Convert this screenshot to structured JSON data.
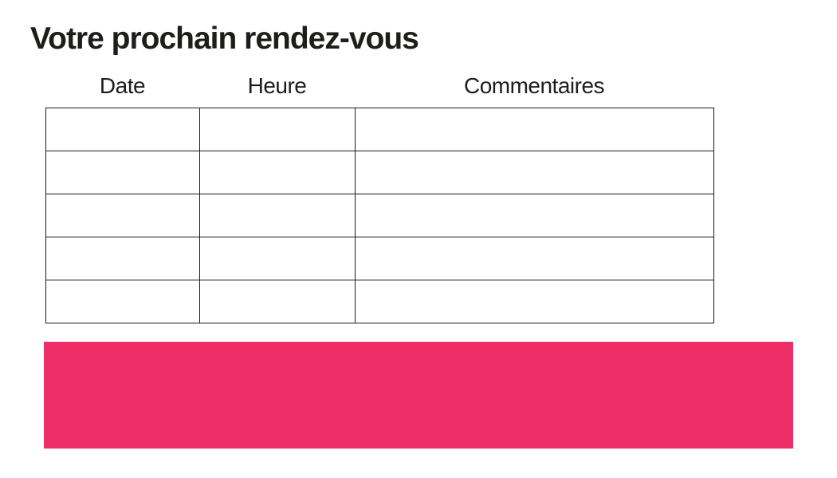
{
  "page": {
    "title": "Votre prochain rendez-vous"
  },
  "table": {
    "headers": [
      "Date",
      "Heure",
      "Commentaires"
    ],
    "rows": [
      [
        "",
        "",
        ""
      ],
      [
        "",
        "",
        ""
      ],
      [
        "",
        "",
        ""
      ],
      [
        "",
        "",
        ""
      ],
      [
        "",
        "",
        ""
      ]
    ]
  },
  "banner": {
    "text": ""
  },
  "colors": {
    "accent_pink": "#ED2E67",
    "text": "#1D1D1B",
    "table_border": "#1A1A1A",
    "background": "#FFFFFF"
  }
}
